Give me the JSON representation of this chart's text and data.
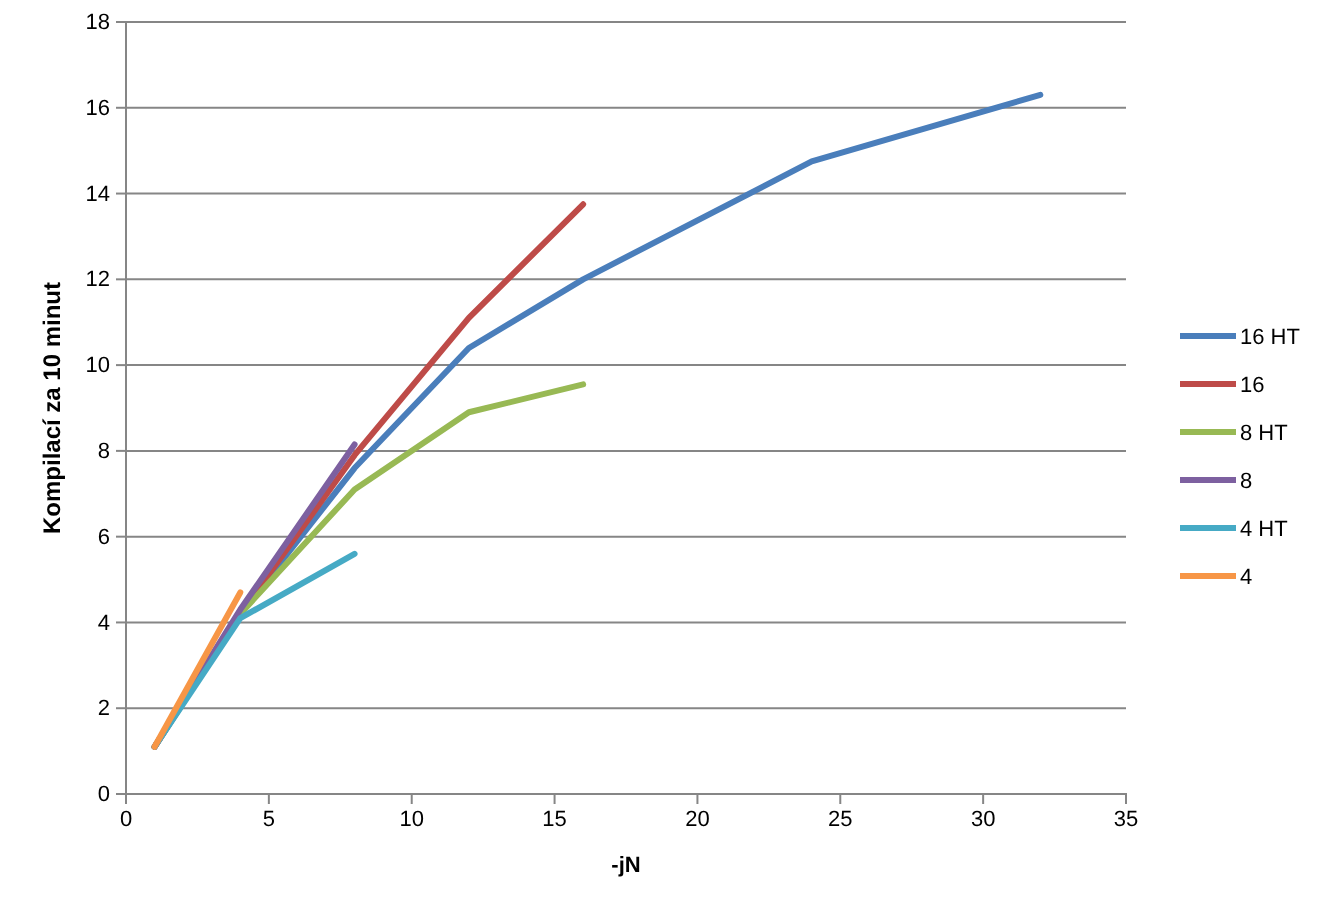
{
  "chart_data": {
    "type": "line",
    "xlabel": "-jN",
    "ylabel": "Kompilací za 10 minut",
    "xlim": [
      0,
      35
    ],
    "xticks": [
      0,
      5,
      10,
      15,
      20,
      25,
      30,
      35
    ],
    "ylim": [
      0,
      18
    ],
    "yticks": [
      0,
      2,
      4,
      6,
      8,
      10,
      12,
      14,
      16,
      18
    ],
    "grid": "y",
    "legend": "right",
    "marker": "none",
    "line_style": "solid",
    "series": [
      {
        "name": "16 HT",
        "color": "#4a7ebb",
        "x": [
          1,
          4,
          8,
          12,
          16,
          24,
          32
        ],
        "values": [
          1.1,
          4.2,
          7.6,
          10.4,
          12.0,
          14.75,
          16.3
        ]
      },
      {
        "name": "16",
        "color": "#be4b48",
        "x": [
          1,
          4,
          8,
          12,
          16
        ],
        "values": [
          1.1,
          4.2,
          7.9,
          11.1,
          13.75
        ]
      },
      {
        "name": "8 HT",
        "color": "#98b954",
        "x": [
          1,
          4,
          8,
          12,
          16
        ],
        "values": [
          1.1,
          4.2,
          7.1,
          8.9,
          9.55
        ]
      },
      {
        "name": "8",
        "color": "#7d60a0",
        "x": [
          1,
          4,
          8
        ],
        "values": [
          1.1,
          4.3,
          8.15
        ]
      },
      {
        "name": "4 HT",
        "color": "#46aac5",
        "x": [
          1,
          4,
          8
        ],
        "values": [
          1.1,
          4.1,
          5.6
        ]
      },
      {
        "name": "4",
        "color": "#f79646",
        "x": [
          1,
          4
        ],
        "values": [
          1.1,
          4.7
        ]
      }
    ]
  }
}
